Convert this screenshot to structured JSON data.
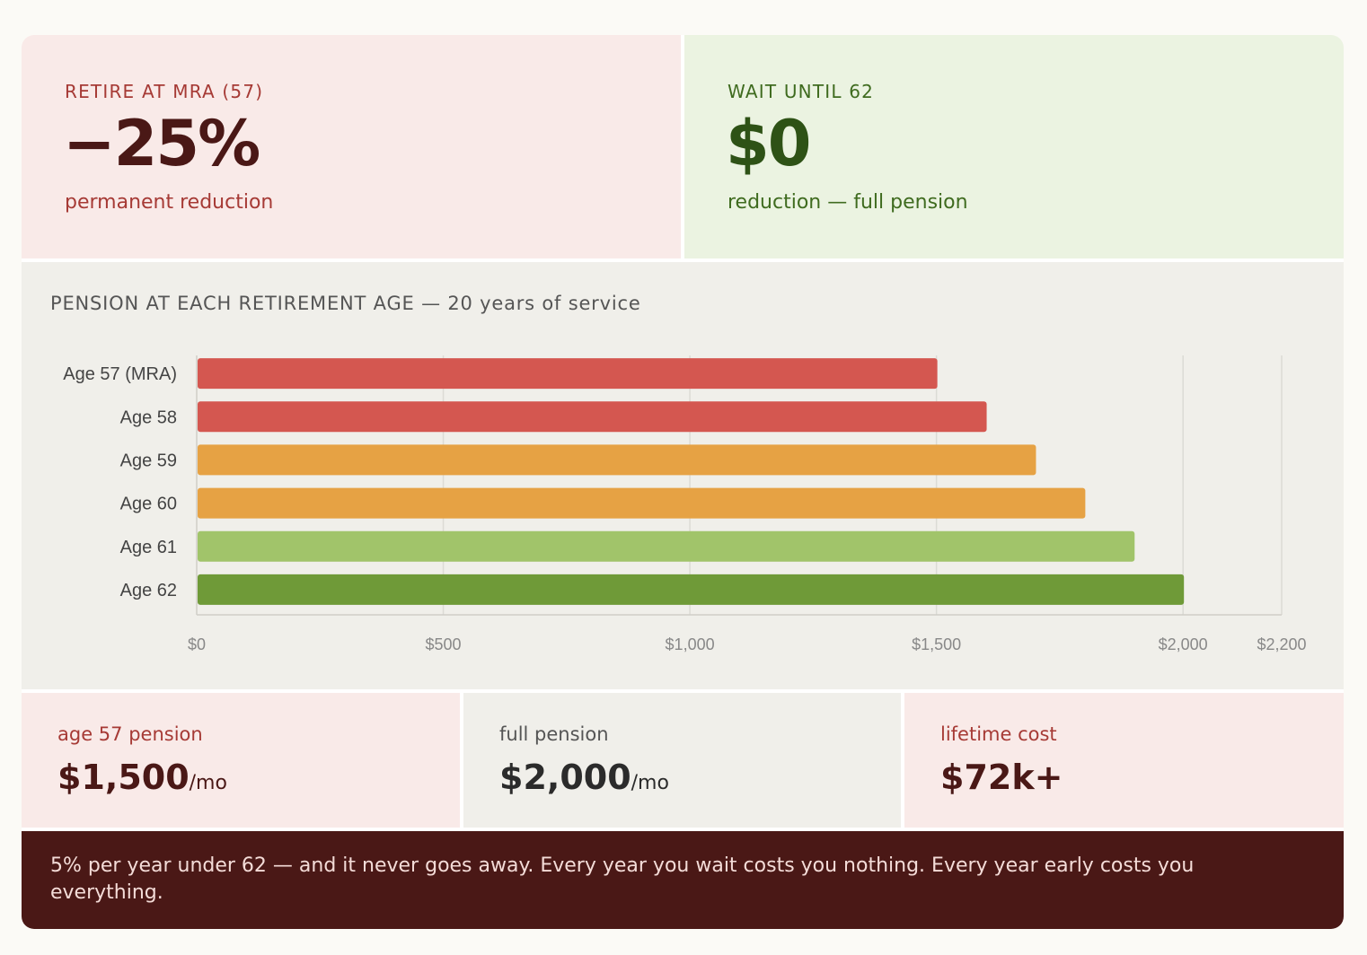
{
  "top_left": {
    "eyebrow": "RETIRE AT MRA (57)",
    "value": "−25%",
    "caption": "permanent reduction"
  },
  "top_right": {
    "eyebrow": "WAIT UNTIL 62",
    "value": "$0",
    "caption": "reduction — full pension"
  },
  "chart_title": "PENSION AT EACH RETIREMENT AGE — 20 years of service",
  "chart_data": {
    "type": "bar",
    "orientation": "horizontal",
    "categories": [
      "Age 57 (MRA)",
      "Age 58",
      "Age 59",
      "Age 60",
      "Age 61",
      "Age 62"
    ],
    "values": [
      1500,
      1600,
      1700,
      1800,
      1900,
      2000
    ],
    "colors": [
      "#d45750",
      "#d45750",
      "#e6a244",
      "#e6a244",
      "#a1c46a",
      "#6f9a38"
    ],
    "xlim": [
      0,
      2200
    ],
    "xticks": [
      0,
      500,
      1000,
      1500,
      2000,
      2200
    ],
    "xtick_labels": [
      "$0",
      "$500",
      "$1,000",
      "$1,500",
      "$2,000",
      "$2,200"
    ],
    "grid": true,
    "xlabel": "",
    "ylabel": ""
  },
  "stats": [
    {
      "label": "age 57 pension",
      "value": "$1,500",
      "unit": "/mo"
    },
    {
      "label": "full pension",
      "value": "$2,000",
      "unit": "/mo"
    },
    {
      "label": "lifetime cost",
      "value": "$72k+",
      "unit": ""
    }
  ],
  "footer": "5% per year under 62 — and it never goes away. Every year you wait costs you nothing. Every year early costs you everything."
}
